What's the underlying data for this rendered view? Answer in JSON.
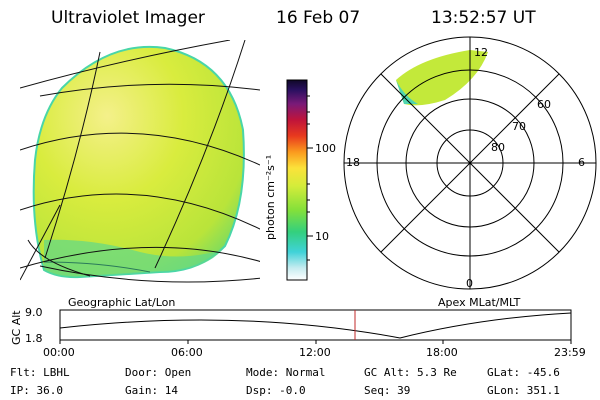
{
  "header": {
    "instrument": "Ultraviolet Imager",
    "date": "16 Feb 07",
    "time": "13:52:57 UT"
  },
  "colorbar": {
    "label": "photon cm⁻²s⁻¹",
    "ticks": [
      "100",
      "10"
    ]
  },
  "polar_plot": {
    "mlt_labels": {
      "top": "12",
      "left": "18",
      "right": "6",
      "bottom": "0"
    },
    "lat_labels": [
      "60",
      "70",
      "80"
    ]
  },
  "altitude_panel": {
    "map_left": "Geographic Lat/Lon",
    "map_right": "Apex MLat/MLT",
    "axis_title": "GC Alt",
    "y_ticks": [
      "9.0",
      "1.8"
    ],
    "x_ticks": [
      "00:00",
      "06:00",
      "12:00",
      "18:00",
      "23:59"
    ]
  },
  "status": {
    "flt_label": "Flt:",
    "flt_value": "LBHL",
    "ip_label": "IP:",
    "ip_value": "36.0",
    "door_label": "Door:",
    "door_value": "Open",
    "gain_label": "Gain:",
    "gain_value": "14",
    "mode_label": "Mode:",
    "mode_value": "Normal",
    "dsp_label": "Dsp:",
    "dsp_value": "-0.0",
    "gcalt_label": "GC Alt:",
    "gcalt_value": "5.3 Re",
    "seq_label": "Seq:",
    "seq_value": "39",
    "glat_label": "GLat:",
    "glat_value": "-45.6",
    "glon_label": "GLon:",
    "glon_value": "351.1"
  },
  "colors": {
    "image_fill": "#d6ec3c",
    "image_edge": "#49d6a8",
    "marker": "#c0282a"
  }
}
